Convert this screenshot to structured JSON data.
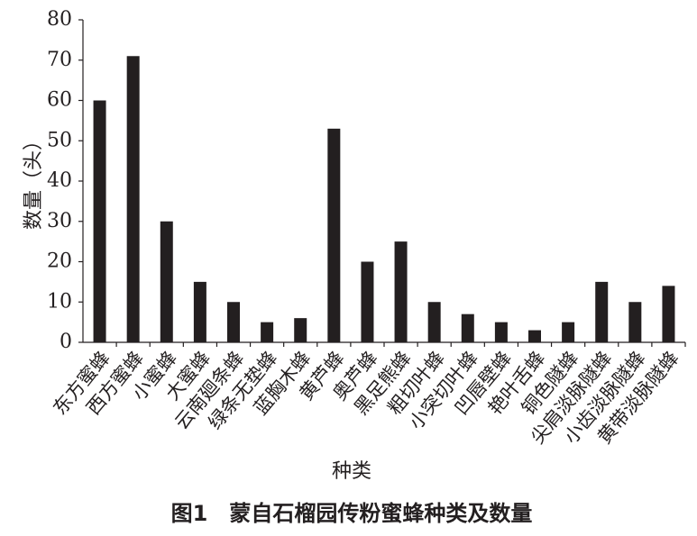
{
  "chart_data": {
    "type": "bar",
    "categories": [
      "东方蜜蜂",
      "西方蜜蜂",
      "小蜜蜂",
      "大蜜蜂",
      "云南廻条蜂",
      "绿条无垫蜂",
      "蓝胸木蜂",
      "黄芦蜂",
      "奥芦蜂",
      "黑足熊蜂",
      "粗切叶蜂",
      "小突切叶蜂",
      "凹唇壁蜂",
      "艳叶舌蜂",
      "铜色隧蜂",
      "尖肩淡脉隧蜂",
      "小齿淡脉隧蜂",
      "黄带淡脉隧蜂"
    ],
    "values": [
      60,
      71,
      30,
      15,
      10,
      5,
      6,
      53,
      20,
      25,
      10,
      7,
      5,
      3,
      5,
      15,
      10,
      14
    ],
    "color": "#231f20",
    "ylim": [
      0,
      80
    ],
    "yticks": [
      0,
      10,
      20,
      30,
      40,
      50,
      60,
      70,
      80
    ],
    "xlabel": "种类",
    "ylabel": "数量（头）",
    "caption": "图1　蒙自石榴园传粉蜜蜂种类及数量"
  }
}
